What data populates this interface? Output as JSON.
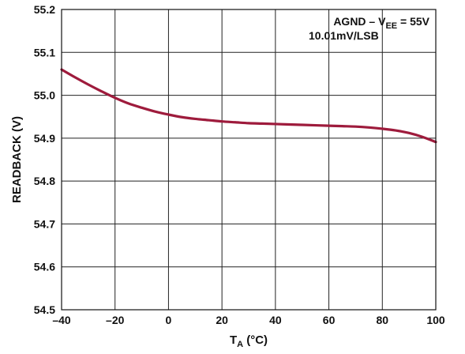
{
  "chart_data": {
    "type": "line",
    "title": "",
    "xlabel": {
      "main": "T",
      "sub": "A",
      "unit": " (°C)"
    },
    "ylabel": "READBACK (V)",
    "xlim": [
      -40,
      100
    ],
    "ylim": [
      54.5,
      55.2
    ],
    "x_ticks": [
      -40,
      -20,
      0,
      20,
      40,
      60,
      80,
      100
    ],
    "x_tick_labels": [
      "–40",
      "–20",
      "0",
      "20",
      "40",
      "60",
      "80",
      "100"
    ],
    "y_ticks": [
      54.5,
      54.6,
      54.7,
      54.8,
      54.9,
      55.0,
      55.1,
      55.2
    ],
    "y_tick_labels": [
      "54.5",
      "54.6",
      "54.7",
      "54.8",
      "54.9",
      "55.0",
      "55.1",
      "55.2"
    ],
    "grid": true,
    "annotation": {
      "line1_prefix": "AGND – V",
      "line1_sub": "EE",
      "line1_suffix": " = 55V",
      "line2": "10.01mV/LSB"
    },
    "series": [
      {
        "color": "#9e1b3c",
        "x": [
          -40,
          -35,
          -30,
          -25,
          -20,
          -15,
          -10,
          -5,
          0,
          5,
          10,
          15,
          20,
          25,
          30,
          35,
          40,
          45,
          50,
          55,
          60,
          65,
          70,
          75,
          80,
          85,
          90,
          95,
          100
        ],
        "y": [
          55.06,
          55.042,
          55.025,
          55.009,
          54.994,
          54.981,
          54.971,
          54.962,
          54.955,
          54.949,
          54.945,
          54.942,
          54.939,
          54.937,
          54.935,
          54.934,
          54.933,
          54.932,
          54.931,
          54.93,
          54.929,
          54.928,
          54.927,
          54.925,
          54.922,
          54.918,
          54.912,
          54.903,
          54.891
        ]
      }
    ]
  }
}
